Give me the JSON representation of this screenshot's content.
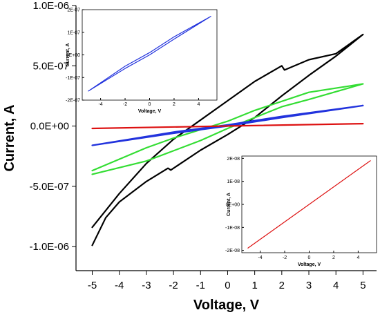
{
  "chart_data": [
    {
      "type": "line",
      "xlabel": "Voltage, V",
      "ylabel": "Current, A",
      "xlim": [
        -5.6,
        5.5
      ],
      "ylim": [
        -1.2e-06,
        1e-06
      ],
      "x_ticks": [
        "-5",
        "-4",
        "-3",
        "-2",
        "-1",
        "0",
        "1",
        "2",
        "3",
        "4",
        "5"
      ],
      "y_ticks": [
        "1.0E-06",
        "5.0E-07",
        "0.0E+00",
        "-5.0E-07",
        "-1.0E-06"
      ],
      "grid": false,
      "series": [
        {
          "color": "#000000",
          "values": [
            [
              -5,
              -9.9e-07
            ],
            [
              -4.5,
              -7.6e-07
            ],
            [
              -4,
              -6.3e-07
            ],
            [
              -3,
              -4.6e-07
            ],
            [
              -2.2,
              -3.5e-07
            ],
            [
              -2.1,
              -3.65e-07
            ],
            [
              -1,
              -2e-07
            ],
            [
              0,
              -7e-08
            ],
            [
              1,
              7e-08
            ],
            [
              2,
              2.5e-07
            ],
            [
              3,
              4.2e-07
            ],
            [
              4,
              5.8e-07
            ],
            [
              5,
              7.6e-07
            ],
            [
              4,
              6e-07
            ],
            [
              3,
              5.5e-07
            ],
            [
              2.1,
              4.65e-07
            ],
            [
              2,
              5e-07
            ],
            [
              1,
              3.7e-07
            ],
            [
              0,
              2.1e-07
            ],
            [
              -1,
              5e-08
            ],
            [
              -2,
              -1.1e-07
            ],
            [
              -3,
              -3.1e-07
            ],
            [
              -4,
              -5.6e-07
            ],
            [
              -5,
              -8.4e-07
            ]
          ]
        },
        {
          "color": "#33dd33",
          "values": [
            [
              -5,
              -4e-07
            ],
            [
              -3,
              -2.9e-07
            ],
            [
              -1,
              -1.2e-07
            ],
            [
              0,
              -2e-08
            ],
            [
              2,
              1.6e-07
            ],
            [
              3,
              2.2e-07
            ],
            [
              5,
              3.5e-07
            ],
            [
              3,
              2.8e-07
            ],
            [
              1,
              1.3e-07
            ],
            [
              0,
              4e-08
            ],
            [
              -2,
              -1e-07
            ],
            [
              -3,
              -1.8e-07
            ],
            [
              -5,
              -3.7e-07
            ]
          ]
        },
        {
          "color": "#2233dd",
          "values": [
            [
              -5,
              -1.6e-07
            ],
            [
              -2,
              -6e-08
            ],
            [
              0,
              0
            ],
            [
              2,
              7e-08
            ],
            [
              5,
              1.7e-07
            ],
            [
              2,
              8e-08
            ],
            [
              0,
              1e-08
            ],
            [
              -2,
              -5e-08
            ],
            [
              -5,
              -1.6e-07
            ]
          ]
        },
        {
          "color": "#dd1111",
          "values": [
            [
              -5,
              -2e-08
            ],
            [
              0,
              0
            ],
            [
              5,
              2e-08
            ]
          ]
        }
      ]
    },
    {
      "type": "line",
      "xlabel": "Voltage, V",
      "ylabel": "Current, A",
      "xlim": [
        -5.5,
        5.5
      ],
      "ylim": [
        -2e-07,
        2e-07
      ],
      "x_ticks": [
        "-4",
        "-2",
        "0",
        "2",
        "4"
      ],
      "y_ticks": [
        "2E-07",
        "1E-07",
        "0E+00",
        "-1E-07",
        "-2E-07"
      ],
      "grid": false,
      "series": [
        {
          "color": "#2233dd",
          "values": [
            [
              -5,
              -1.6e-07
            ],
            [
              -2,
              -6e-08
            ],
            [
              0,
              0
            ],
            [
              2,
              7e-08
            ],
            [
              5,
              1.7e-07
            ],
            [
              2,
              8e-08
            ],
            [
              0,
              1e-08
            ],
            [
              -2,
              -5e-08
            ],
            [
              -5,
              -1.6e-07
            ]
          ]
        }
      ]
    },
    {
      "type": "line",
      "xlabel": "Voltage, V",
      "ylabel": "Current, A",
      "xlim": [
        -5.5,
        5.5
      ],
      "ylim": [
        -2.1e-08,
        2.1e-08
      ],
      "x_ticks": [
        "-4",
        "-2",
        "0",
        "2",
        "4"
      ],
      "y_ticks": [
        "2E-08",
        "1E-08",
        "0E+00",
        "-1E-08",
        "-2E-08"
      ],
      "grid": false,
      "series": [
        {
          "color": "#dd1111",
          "values": [
            [
              -5,
              -1.9e-08
            ],
            [
              0,
              0
            ],
            [
              5,
              1.9e-08
            ]
          ]
        }
      ]
    }
  ]
}
